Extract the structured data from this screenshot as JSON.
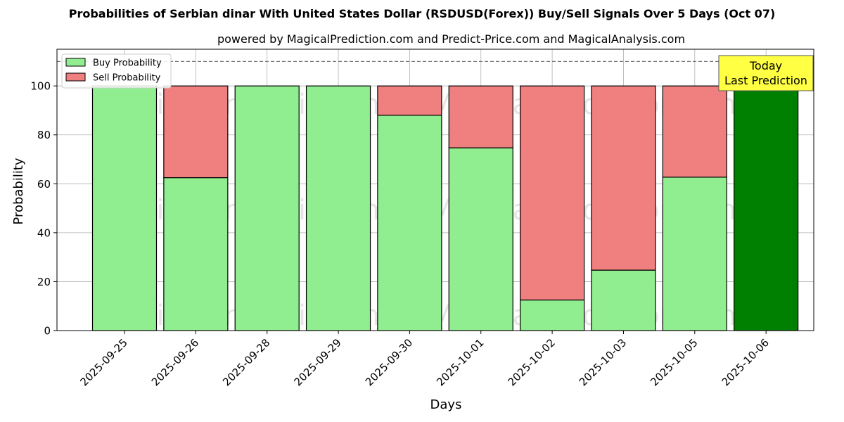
{
  "chart_data": {
    "type": "bar",
    "stacked": true,
    "title": "Probabilities of Serbian dinar With United States Dollar (RSDUSD(Forex)) Buy/Sell Signals Over 5 Days (Oct 07)",
    "subtitle": "powered by MagicalPrediction.com and Predict-Price.com and MagicalAnalysis.com",
    "xlabel": "Days",
    "ylabel": "Probability",
    "ylim": [
      0,
      115
    ],
    "yticks": [
      "0",
      "20",
      "40",
      "60",
      "80",
      "100"
    ],
    "categories": [
      "2025-09-25",
      "2025-09-26",
      "2025-09-28",
      "2025-09-29",
      "2025-09-30",
      "2025-10-01",
      "2025-10-02",
      "2025-10-03",
      "2025-10-05",
      "2025-10-06"
    ],
    "series": [
      {
        "name": "Buy Probability",
        "color": "#90ee90",
        "values": [
          100,
          62.5,
          100,
          100,
          88,
          74.7,
          12.5,
          24.7,
          62.7,
          100
        ]
      },
      {
        "name": "Sell Probability",
        "color": "#f08080",
        "values": [
          0,
          37.5,
          0,
          0,
          12,
          25.3,
          87.5,
          75.3,
          37.3,
          0
        ]
      }
    ],
    "highlight": {
      "index": 9,
      "color": "#008000"
    },
    "reference_line": {
      "y": 110
    },
    "annotation": {
      "line1": "Today",
      "line2": "Last Prediction",
      "color": "#ffff44"
    },
    "watermarks": [
      "MagicalAnalysis.com",
      "MagicalPrediction.com"
    ],
    "grid": true,
    "legend_position": "top-left"
  }
}
